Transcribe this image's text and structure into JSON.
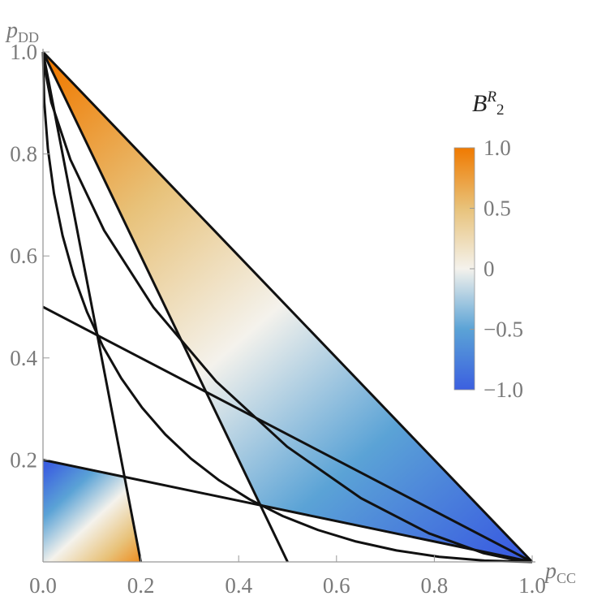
{
  "chart_data": {
    "type": "region-plot",
    "xlabel": {
      "base": "p",
      "sub": "CC"
    },
    "ylabel": {
      "base": "p",
      "sub": "DD"
    },
    "xlim": [
      0,
      1
    ],
    "ylim": [
      0,
      1
    ],
    "xticks": [
      {
        "value": 0,
        "label": "0.0"
      },
      0.2,
      0.4,
      0.6,
      0.8,
      {
        "value": 1,
        "label": "1.0"
      }
    ],
    "yticks": [
      0.2,
      0.4,
      0.6,
      0.8,
      {
        "value": 1,
        "label": "1.0"
      }
    ],
    "colorbar": {
      "title": {
        "base": "B",
        "sup": "R",
        "sub": "2"
      },
      "lim": [
        -1,
        1
      ],
      "ticks": [
        {
          "value": 1,
          "label": "1.0"
        },
        0.5,
        0,
        {
          "value": -0.5,
          "label": "−0.5"
        },
        {
          "value": -1,
          "label": "−1.0"
        }
      ],
      "colors": [
        "#3b5fe0",
        "#5ba3d6",
        "#f4f2ec",
        "#e8c27a",
        "#f07a00"
      ]
    },
    "series": [
      {
        "kind": "region",
        "gradient": "diag",
        "x": [
          0,
          0.444,
          1
        ],
        "y": [
          1,
          0.111,
          0
        ]
      },
      {
        "kind": "region",
        "gradient": "small",
        "x": [
          0,
          0,
          0.167,
          0.2
        ],
        "y": [
          0,
          0.2,
          0.167,
          0
        ]
      },
      {
        "kind": "line",
        "color": "#111",
        "x": [
          0,
          1
        ],
        "y": [
          1,
          0
        ]
      },
      {
        "kind": "line",
        "color": "#111",
        "x": [
          0,
          0.5
        ],
        "y": [
          1,
          0
        ]
      },
      {
        "kind": "line",
        "color": "#111",
        "x": [
          0,
          0.2
        ],
        "y": [
          1,
          0
        ]
      },
      {
        "kind": "line",
        "color": "#111",
        "x": [
          0,
          1
        ],
        "y": [
          0.5,
          0
        ]
      },
      {
        "kind": "line",
        "color": "#111",
        "x": [
          0,
          1
        ],
        "y": [
          0.2,
          0
        ]
      },
      {
        "kind": "line",
        "color": "#111",
        "x": [
          0,
          0.0025,
          0.01,
          0.0225,
          0.04,
          0.0625,
          0.09,
          0.1225,
          0.16,
          0.2025,
          0.25,
          0.3025,
          0.36,
          0.4225,
          0.49,
          0.5625,
          0.64,
          0.7225,
          0.81,
          0.9025,
          1
        ],
        "y": [
          1,
          0.9025,
          0.81,
          0.7225,
          0.64,
          0.5625,
          0.49,
          0.4225,
          0.36,
          0.3025,
          0.25,
          0.2025,
          0.16,
          0.1225,
          0.09,
          0.0625,
          0.04,
          0.0225,
          0.01,
          0.0025,
          0
        ]
      },
      {
        "kind": "line",
        "color": "#111",
        "x": [
          0,
          0.002,
          0.017,
          0.056,
          0.125,
          0.226,
          0.354,
          0.499,
          0.65,
          0.789,
          0.901,
          0.975,
          1
        ],
        "y": [
          1,
          0.975,
          0.901,
          0.789,
          0.65,
          0.499,
          0.354,
          0.226,
          0.125,
          0.056,
          0.017,
          0.002,
          0
        ]
      }
    ]
  }
}
